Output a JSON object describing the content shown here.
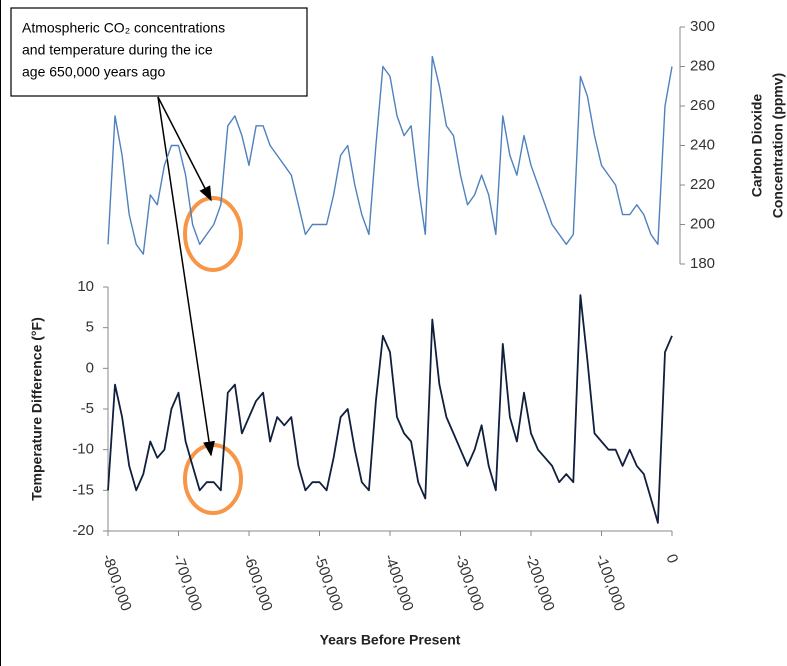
{
  "chart_data": [
    {
      "type": "line",
      "annotation": [
        "Atmospheric CO₂ concentrations",
        "and temperature during the ice",
        "age 650,000 years ago"
      ],
      "y2label": [
        "Carbon Dioxide",
        "Concentration (ppmv)"
      ],
      "xlim": [
        -800000,
        0
      ],
      "y2lim": [
        180,
        300
      ],
      "y2ticks": [
        180,
        200,
        220,
        240,
        260,
        280,
        300
      ],
      "x": [
        -800000,
        -790000,
        -780000,
        -770000,
        -760000,
        -750000,
        -740000,
        -730000,
        -720000,
        -710000,
        -700000,
        -690000,
        -680000,
        -670000,
        -660000,
        -650000,
        -640000,
        -630000,
        -620000,
        -610000,
        -600000,
        -590000,
        -580000,
        -570000,
        -560000,
        -550000,
        -540000,
        -530000,
        -520000,
        -510000,
        -500000,
        -490000,
        -480000,
        -470000,
        -460000,
        -450000,
        -440000,
        -430000,
        -420000,
        -410000,
        -400000,
        -390000,
        -380000,
        -370000,
        -360000,
        -350000,
        -340000,
        -330000,
        -320000,
        -310000,
        -300000,
        -290000,
        -280000,
        -270000,
        -260000,
        -250000,
        -240000,
        -230000,
        -220000,
        -210000,
        -200000,
        -190000,
        -180000,
        -170000,
        -160000,
        -150000,
        -140000,
        -130000,
        -120000,
        -110000,
        -100000,
        -90000,
        -80000,
        -70000,
        -60000,
        -50000,
        -40000,
        -30000,
        -20000,
        -10000,
        0
      ],
      "series": [
        {
          "color": "#4f81bd",
          "axis": "y2",
          "values": [
            190,
            255,
            235,
            205,
            190,
            185,
            215,
            210,
            230,
            240,
            240,
            225,
            200,
            190,
            195,
            200,
            210,
            250,
            255,
            245,
            230,
            250,
            250,
            240,
            235,
            230,
            225,
            210,
            195,
            200,
            200,
            200,
            215,
            235,
            240,
            220,
            205,
            195,
            240,
            280,
            275,
            255,
            245,
            250,
            220,
            195,
            285,
            270,
            250,
            245,
            225,
            210,
            215,
            225,
            215,
            195,
            255,
            235,
            225,
            245,
            230,
            220,
            210,
            200,
            195,
            190,
            195,
            275,
            265,
            245,
            230,
            225,
            220,
            205,
            205,
            210,
            205,
            195,
            190,
            260,
            280
          ]
        }
      ]
    },
    {
      "type": "line",
      "ylabel": "Temperature Difference (°F)",
      "xlabel": "Years Before Present",
      "xlim": [
        -800000,
        0
      ],
      "ylim": [
        -20,
        10
      ],
      "yticks": [
        -20,
        -15,
        -10,
        -5,
        0,
        5,
        10
      ],
      "xticks": [
        {
          "value": -800000,
          "label": "-800,000"
        },
        {
          "value": -700000,
          "label": "-700,000"
        },
        {
          "value": -600000,
          "label": "-600,000"
        },
        {
          "value": -500000,
          "label": "-500,000"
        },
        {
          "value": -400000,
          "label": "-400,000"
        },
        {
          "value": -300000,
          "label": "-300,000"
        },
        {
          "value": -200000,
          "label": "-200,000"
        },
        {
          "value": -100000,
          "label": "-100,000"
        },
        0
      ],
      "x": [
        -800000,
        -790000,
        -780000,
        -770000,
        -760000,
        -750000,
        -740000,
        -730000,
        -720000,
        -710000,
        -700000,
        -690000,
        -680000,
        -670000,
        -660000,
        -650000,
        -640000,
        -630000,
        -620000,
        -610000,
        -600000,
        -590000,
        -580000,
        -570000,
        -560000,
        -550000,
        -540000,
        -530000,
        -520000,
        -510000,
        -500000,
        -490000,
        -480000,
        -470000,
        -460000,
        -450000,
        -440000,
        -430000,
        -420000,
        -410000,
        -400000,
        -390000,
        -380000,
        -370000,
        -360000,
        -350000,
        -340000,
        -330000,
        -320000,
        -310000,
        -300000,
        -290000,
        -280000,
        -270000,
        -260000,
        -250000,
        -240000,
        -230000,
        -220000,
        -210000,
        -200000,
        -190000,
        -180000,
        -170000,
        -160000,
        -150000,
        -140000,
        -130000,
        -120000,
        -110000,
        -100000,
        -90000,
        -80000,
        -70000,
        -60000,
        -50000,
        -40000,
        -30000,
        -20000,
        -10000,
        0
      ],
      "series": [
        {
          "color": "#0f1f3d",
          "values": [
            -15,
            -2,
            -6,
            -12,
            -15,
            -13,
            -9,
            -11,
            -10,
            -5,
            -3,
            -9,
            -12,
            -15,
            -14,
            -14,
            -15,
            -3,
            -2,
            -8,
            -6,
            -4,
            -3,
            -9,
            -6,
            -7,
            -6,
            -12,
            -15,
            -14,
            -14,
            -15,
            -11,
            -6,
            -5,
            -10,
            -14,
            -15,
            -4,
            4,
            2,
            -6,
            -8,
            -9,
            -14,
            -16,
            6,
            -2,
            -6,
            -8,
            -10,
            -12,
            -10,
            -7,
            -12,
            -15,
            3,
            -6,
            -9,
            -3,
            -8,
            -10,
            -11,
            -12,
            -14,
            -13,
            -14,
            9,
            1,
            -8,
            -9,
            -10,
            -10,
            -12,
            -10,
            -12,
            -13,
            -16,
            -19,
            2,
            4
          ]
        }
      ]
    }
  ]
}
